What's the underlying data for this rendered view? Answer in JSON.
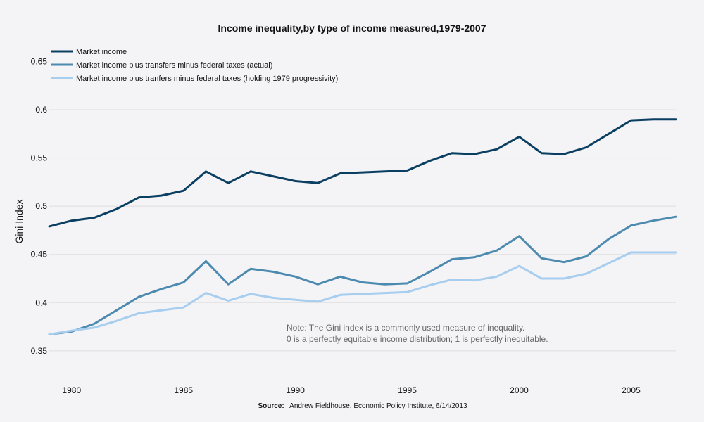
{
  "chart_data": {
    "type": "line",
    "title": "Income inequality,by type of income measured,1979-2007",
    "xlabel": "",
    "ylabel": "Gini Index",
    "xlim": [
      1979,
      2007
    ],
    "ylim": [
      0.32,
      0.67
    ],
    "x_ticks": [
      1980,
      1985,
      1990,
      1995,
      2000,
      2005
    ],
    "y_ticks": [
      0.35,
      0.4,
      0.45,
      0.5,
      0.55,
      0.6,
      0.65
    ],
    "grid": true,
    "legend_position": "top-left",
    "x": [
      1979,
      1980,
      1981,
      1982,
      1983,
      1984,
      1985,
      1986,
      1987,
      1988,
      1989,
      1990,
      1991,
      1992,
      1993,
      1994,
      1995,
      1996,
      1997,
      1998,
      1999,
      2000,
      2001,
      2002,
      2003,
      2004,
      2005,
      2006,
      2007
    ],
    "series": [
      {
        "name": "Market income",
        "color": "#0b3f61",
        "values": [
          0.479,
          0.485,
          0.488,
          0.497,
          0.509,
          0.511,
          0.516,
          0.536,
          0.524,
          0.536,
          0.531,
          0.526,
          0.524,
          0.534,
          0.535,
          0.536,
          0.537,
          0.547,
          0.555,
          0.554,
          0.559,
          0.572,
          0.555,
          0.554,
          0.561,
          0.575,
          0.589,
          0.59,
          0.59
        ]
      },
      {
        "name": "Market income plus transfers minus federal taxes (actual)",
        "color": "#4d8aaf",
        "values": [
          0.367,
          0.37,
          0.378,
          0.392,
          0.406,
          0.414,
          0.421,
          0.443,
          0.419,
          0.435,
          0.432,
          0.427,
          0.419,
          0.427,
          0.421,
          0.419,
          0.42,
          0.432,
          0.445,
          0.447,
          0.454,
          0.469,
          0.446,
          0.442,
          0.448,
          0.466,
          0.48,
          0.485,
          0.489
        ]
      },
      {
        "name": "Market income plus tranfers minus federal taxes (holding 1979 progressivity)",
        "color": "#a7cdef",
        "values": [
          0.367,
          0.371,
          0.374,
          0.381,
          0.389,
          0.392,
          0.395,
          0.41,
          0.402,
          0.409,
          0.405,
          0.403,
          0.401,
          0.408,
          0.409,
          0.41,
          0.411,
          0.418,
          0.424,
          0.423,
          0.427,
          0.438,
          0.425,
          0.425,
          0.43,
          0.441,
          0.452,
          0.452,
          0.452
        ]
      }
    ],
    "annotations": [
      "Note: The Gini index is a commonly used measure of inequality.",
      "0 is a perfectly equitable income distribution; 1 is perfectly inequitable."
    ]
  },
  "source": {
    "label": "Source:",
    "text": "Andrew Fieldhouse, Economic Policy Institute, 6/14/2013"
  }
}
